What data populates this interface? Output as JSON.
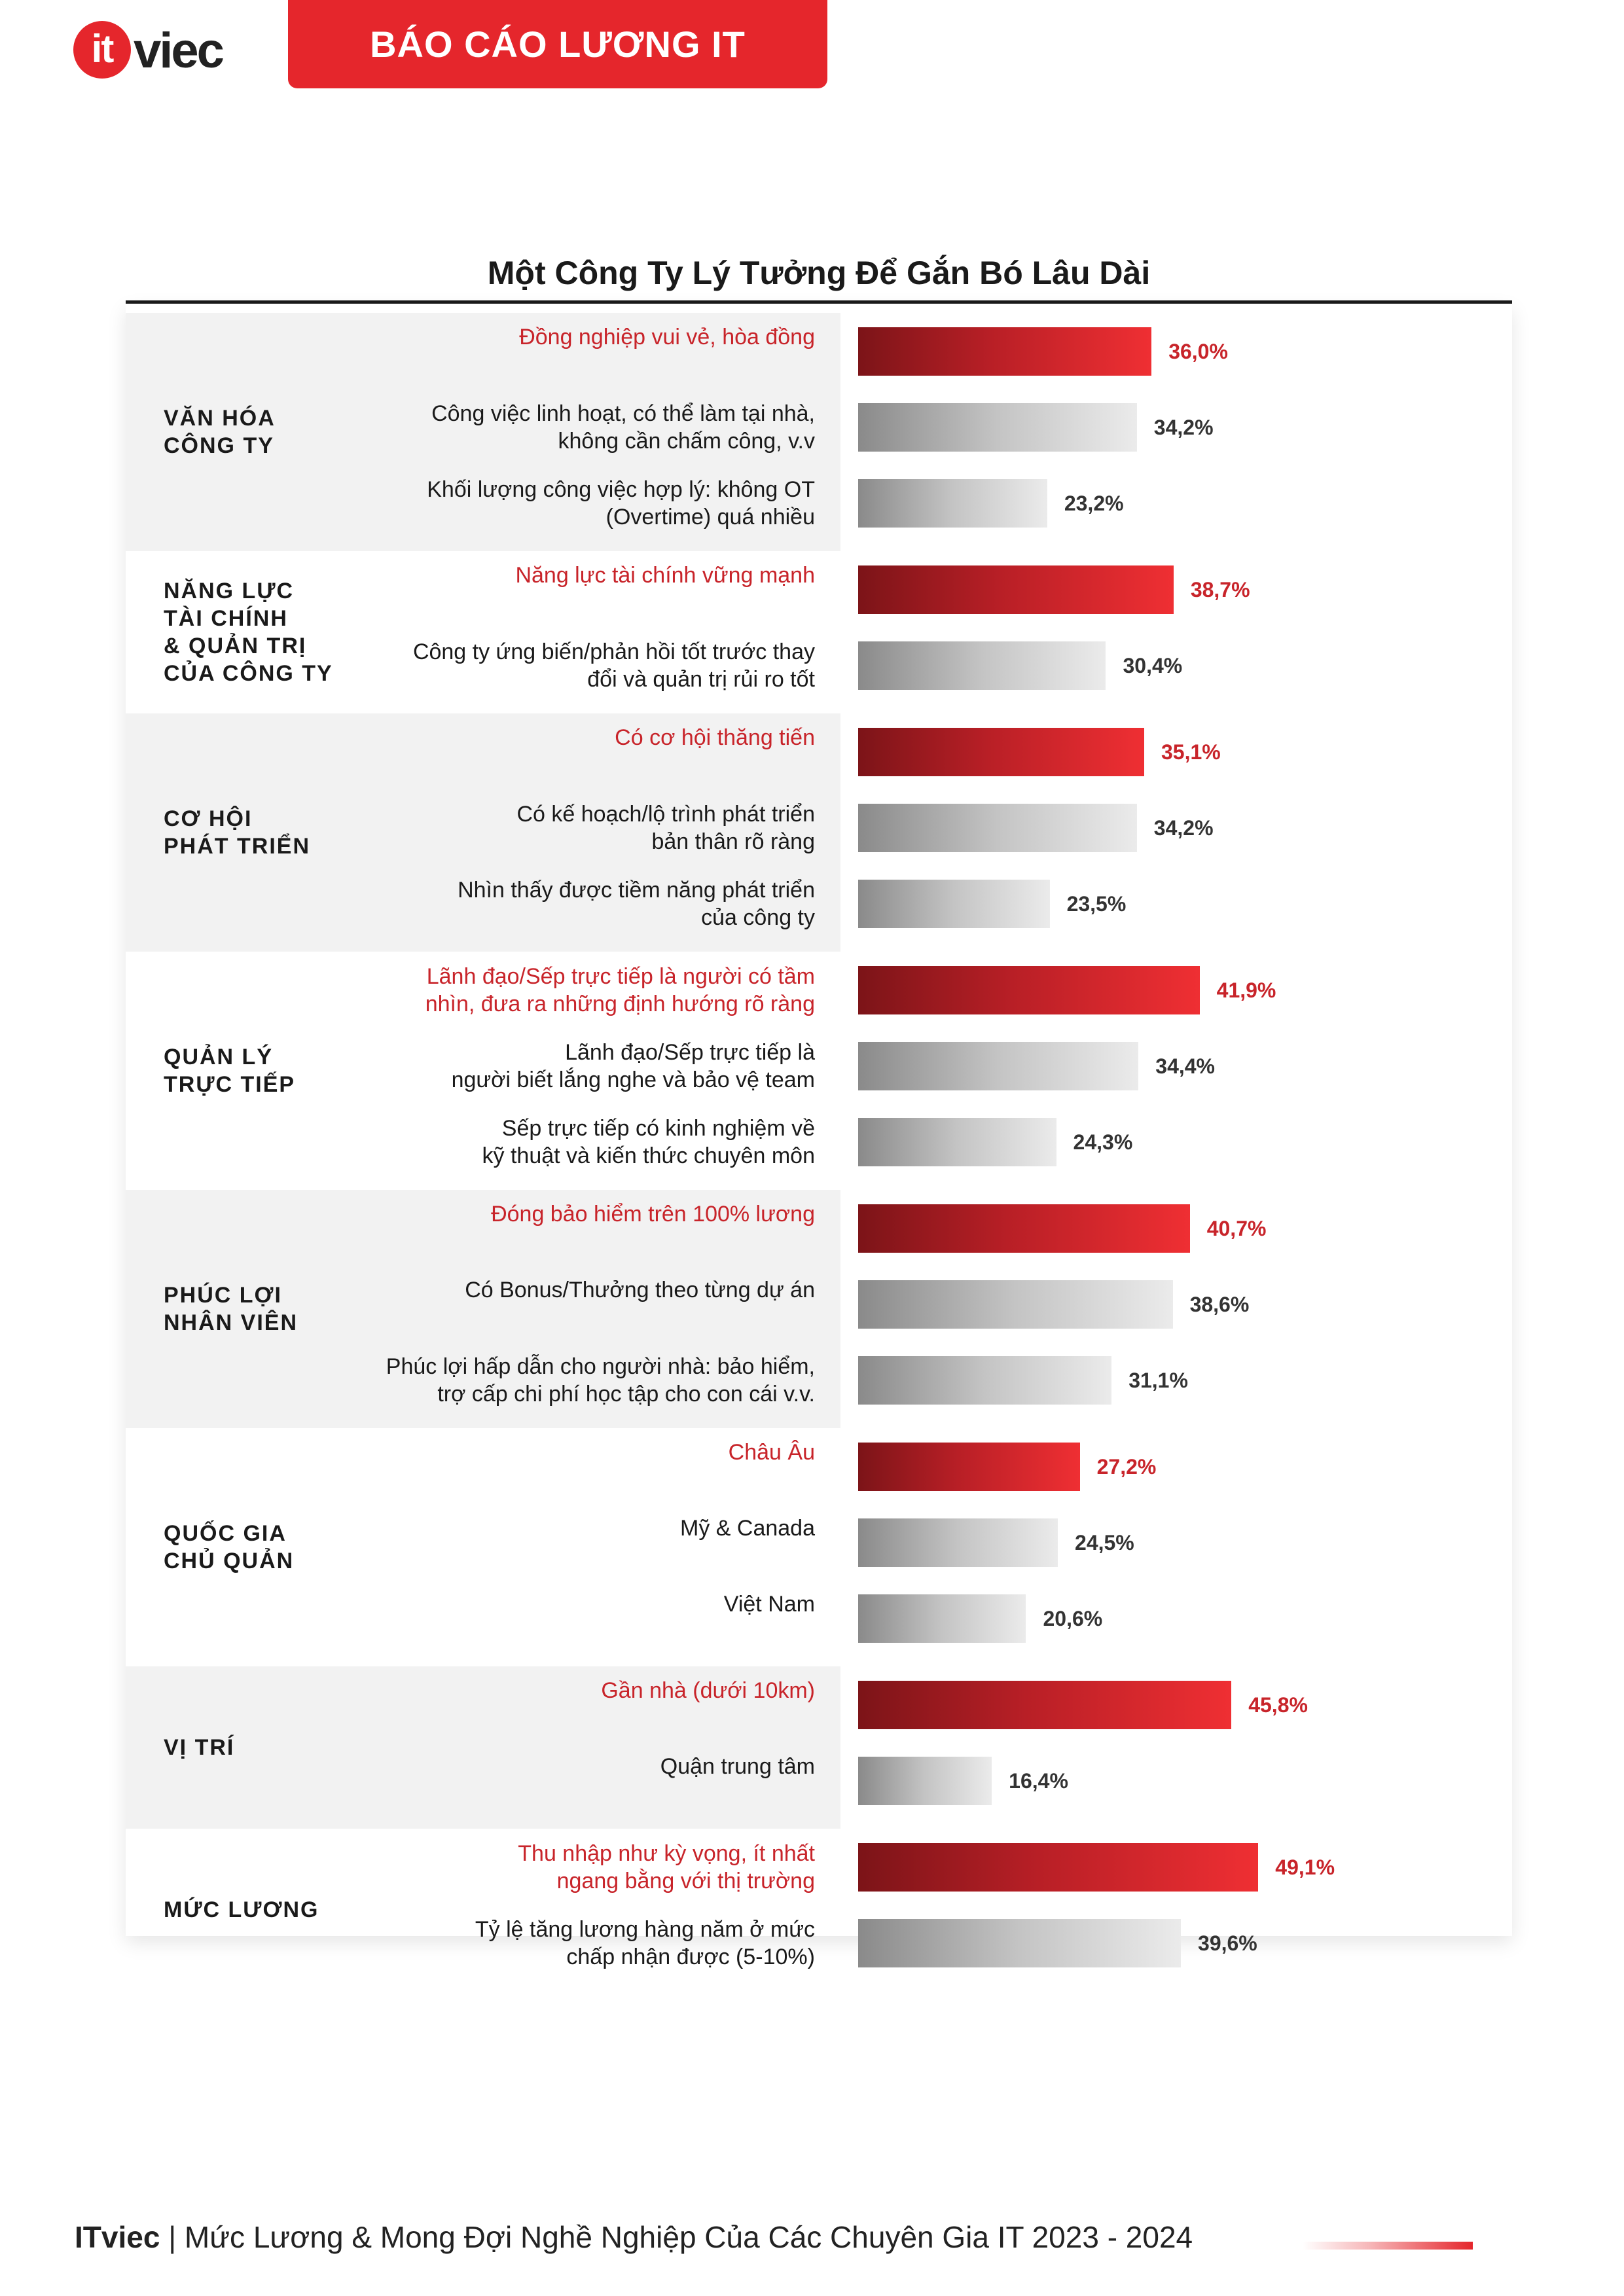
{
  "header": {
    "logo_mark": "it",
    "logo_word": "viec",
    "banner": "BÁO CÁO LƯƠNG IT"
  },
  "footer": {
    "brand": "ITviec",
    "text": " | Mức Lương & Mong Đợi Nghề Nghiệp Của Các Chuyên Gia IT 2023 - 2024"
  },
  "colors": {
    "accent": "#e5262c",
    "highlight_text": "#c8242a",
    "band": "#f2f2f2"
  },
  "chart_data": {
    "type": "bar",
    "orientation": "horizontal",
    "title": "Một Công Ty Lý Tưởng Để Gắn Bó Lâu Dài",
    "unit": "%",
    "groups": [
      {
        "category": "VĂN HÓA\nCÔNG TY",
        "items": [
          {
            "label": "Đồng nghiệp vui vẻ, hòa đồng",
            "value": 36.0,
            "value_label": "36,0%",
            "highlight": true
          },
          {
            "label": "Công việc linh hoạt, có thể làm tại nhà,\nkhông cần chấm công, v.v",
            "value": 34.2,
            "value_label": "34,2%",
            "highlight": false
          },
          {
            "label": "Khối lượng công việc hợp lý: không OT\n(Overtime) quá nhiều",
            "value": 23.2,
            "value_label": "23,2%",
            "highlight": false
          }
        ]
      },
      {
        "category": "NĂNG LỰC\nTÀI CHÍNH\n& QUẢN TRỊ\nCỦA CÔNG TY",
        "items": [
          {
            "label": "Năng lực tài chính vững mạnh",
            "value": 38.7,
            "value_label": "38,7%",
            "highlight": true
          },
          {
            "label": "Công ty ứng biến/phản hồi tốt trước thay\nđổi và quản trị rủi ro tốt",
            "value": 30.4,
            "value_label": "30,4%",
            "highlight": false
          }
        ]
      },
      {
        "category": "CƠ HỘI\nPHÁT TRIỂN",
        "items": [
          {
            "label": "Có cơ hội thăng tiến",
            "value": 35.1,
            "value_label": "35,1%",
            "highlight": true
          },
          {
            "label": "Có kế hoạch/lộ trình phát triển\nbản thân rõ ràng",
            "value": 34.2,
            "value_label": "34,2%",
            "highlight": false
          },
          {
            "label": "Nhìn thấy được tiềm năng phát triển\ncủa công ty",
            "value": 23.5,
            "value_label": "23,5%",
            "highlight": false
          }
        ]
      },
      {
        "category": "QUẢN LÝ\nTRỰC TIẾP",
        "items": [
          {
            "label": "Lãnh đạo/Sếp trực tiếp là người có tầm\nnhìn, đưa ra những định hướng rõ ràng",
            "value": 41.9,
            "value_label": "41,9%",
            "highlight": true
          },
          {
            "label": "Lãnh đạo/Sếp trực tiếp là\nngười biết lắng nghe và bảo vệ team",
            "value": 34.4,
            "value_label": "34,4%",
            "highlight": false
          },
          {
            "label": "Sếp trực tiếp có kinh nghiệm về\nkỹ thuật và kiến thức chuyên môn",
            "value": 24.3,
            "value_label": "24,3%",
            "highlight": false
          }
        ]
      },
      {
        "category": "PHÚC LỢI\nNHÂN VIÊN",
        "items": [
          {
            "label": "Đóng bảo hiểm trên 100% lương",
            "value": 40.7,
            "value_label": "40,7%",
            "highlight": true
          },
          {
            "label": "Có Bonus/Thưởng theo từng dự án",
            "value": 38.6,
            "value_label": "38,6%",
            "highlight": false
          },
          {
            "label": "Phúc lợi hấp dẫn cho người nhà: bảo hiểm,\ntrợ cấp chi phí học tập cho con cái v.v.",
            "value": 31.1,
            "value_label": "31,1%",
            "highlight": false
          }
        ]
      },
      {
        "category": "QUỐC GIA\nCHỦ QUẢN",
        "items": [
          {
            "label": "Châu Âu",
            "value": 27.2,
            "value_label": "27,2%",
            "highlight": true
          },
          {
            "label": "Mỹ & Canada",
            "value": 24.5,
            "value_label": "24,5%",
            "highlight": false
          },
          {
            "label": "Việt Nam",
            "value": 20.6,
            "value_label": "20,6%",
            "highlight": false
          }
        ]
      },
      {
        "category": "VỊ TRÍ",
        "items": [
          {
            "label": "Gần nhà (dưới 10km)",
            "value": 45.8,
            "value_label": "45,8%",
            "highlight": true
          },
          {
            "label": "Quận trung tâm",
            "value": 16.4,
            "value_label": "16,4%",
            "highlight": false
          }
        ]
      },
      {
        "category": "MỨC LƯƠNG",
        "items": [
          {
            "label": "Thu nhập như kỳ vọng, ít nhất\nngang bằng với thị trường",
            "value": 49.1,
            "value_label": "49,1%",
            "highlight": true
          },
          {
            "label": "Tỷ lệ tăng lương hàng năm ở mức\nchấp nhận được (5-10%)",
            "value": 39.6,
            "value_label": "39,6%",
            "highlight": false
          }
        ]
      }
    ]
  }
}
